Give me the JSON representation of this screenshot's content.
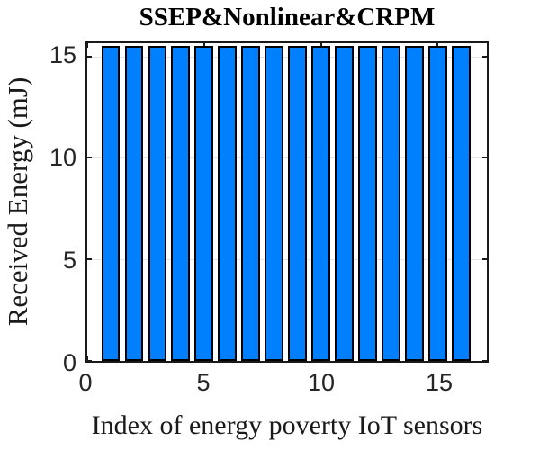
{
  "title": "SSEP&Nonlinear&CRPM",
  "colors": {
    "bar_fill": "#0080ff",
    "bar_edge": "#000000",
    "axis": "#1a1a1a",
    "grid": "#e3e3e3",
    "tick_text": "#262626",
    "background": "#ffffff"
  },
  "chart_data": {
    "type": "bar",
    "title": "SSEP&Nonlinear&CRPM",
    "xlabel": "Index of energy poverty IoT sensors",
    "ylabel": "Received Energy (mJ)",
    "x": [
      1,
      2,
      3,
      4,
      5,
      6,
      7,
      8,
      9,
      10,
      11,
      12,
      13,
      14,
      15,
      16
    ],
    "values": [
      15.5,
      15.5,
      15.5,
      15.5,
      15.5,
      15.5,
      15.5,
      15.5,
      15.5,
      15.5,
      15.5,
      15.5,
      15.5,
      15.5,
      15.5,
      15.5
    ],
    "xlim": [
      0,
      17.1
    ],
    "ylim": [
      0,
      15.65
    ],
    "xticks": [
      0,
      5,
      10,
      15
    ],
    "yticks": [
      0,
      5,
      10,
      15
    ],
    "bar_width": 0.8,
    "grid": "horizontal-only",
    "legend": null
  }
}
